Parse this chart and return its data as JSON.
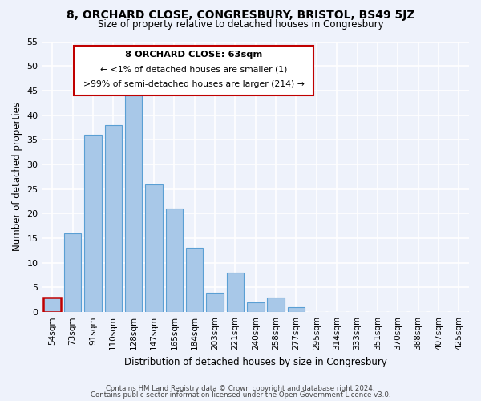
{
  "title": "8, ORCHARD CLOSE, CONGRESBURY, BRISTOL, BS49 5JZ",
  "subtitle": "Size of property relative to detached houses in Congresbury",
  "xlabel": "Distribution of detached houses by size in Congresbury",
  "ylabel": "Number of detached properties",
  "bar_labels": [
    "54sqm",
    "73sqm",
    "91sqm",
    "110sqm",
    "128sqm",
    "147sqm",
    "165sqm",
    "184sqm",
    "203sqm",
    "221sqm",
    "240sqm",
    "258sqm",
    "277sqm",
    "295sqm",
    "314sqm",
    "333sqm",
    "351sqm",
    "370sqm",
    "388sqm",
    "407sqm",
    "425sqm"
  ],
  "bar_values": [
    3,
    16,
    36,
    38,
    44,
    26,
    21,
    13,
    4,
    8,
    2,
    3,
    1,
    0,
    0,
    0,
    0,
    0,
    0,
    0,
    0
  ],
  "bar_color": "#a8c8e8",
  "bar_edge_color": "#5a9fd4",
  "highlight_color": "#c00000",
  "annotation_title": "8 ORCHARD CLOSE: 63sqm",
  "annotation_line1": "← <1% of detached houses are smaller (1)",
  "annotation_line2": ">99% of semi-detached houses are larger (214) →",
  "annotation_box_color": "#ffffff",
  "annotation_box_edge": "#c00000",
  "ylim": [
    0,
    55
  ],
  "yticks": [
    0,
    5,
    10,
    15,
    20,
    25,
    30,
    35,
    40,
    45,
    50,
    55
  ],
  "footnote1": "Contains HM Land Registry data © Crown copyright and database right 2024.",
  "footnote2": "Contains public sector information licensed under the Open Government Licence v3.0.",
  "bg_color": "#eef2fb",
  "plot_bg_color": "#eef2fb",
  "grid_color": "#ffffff"
}
